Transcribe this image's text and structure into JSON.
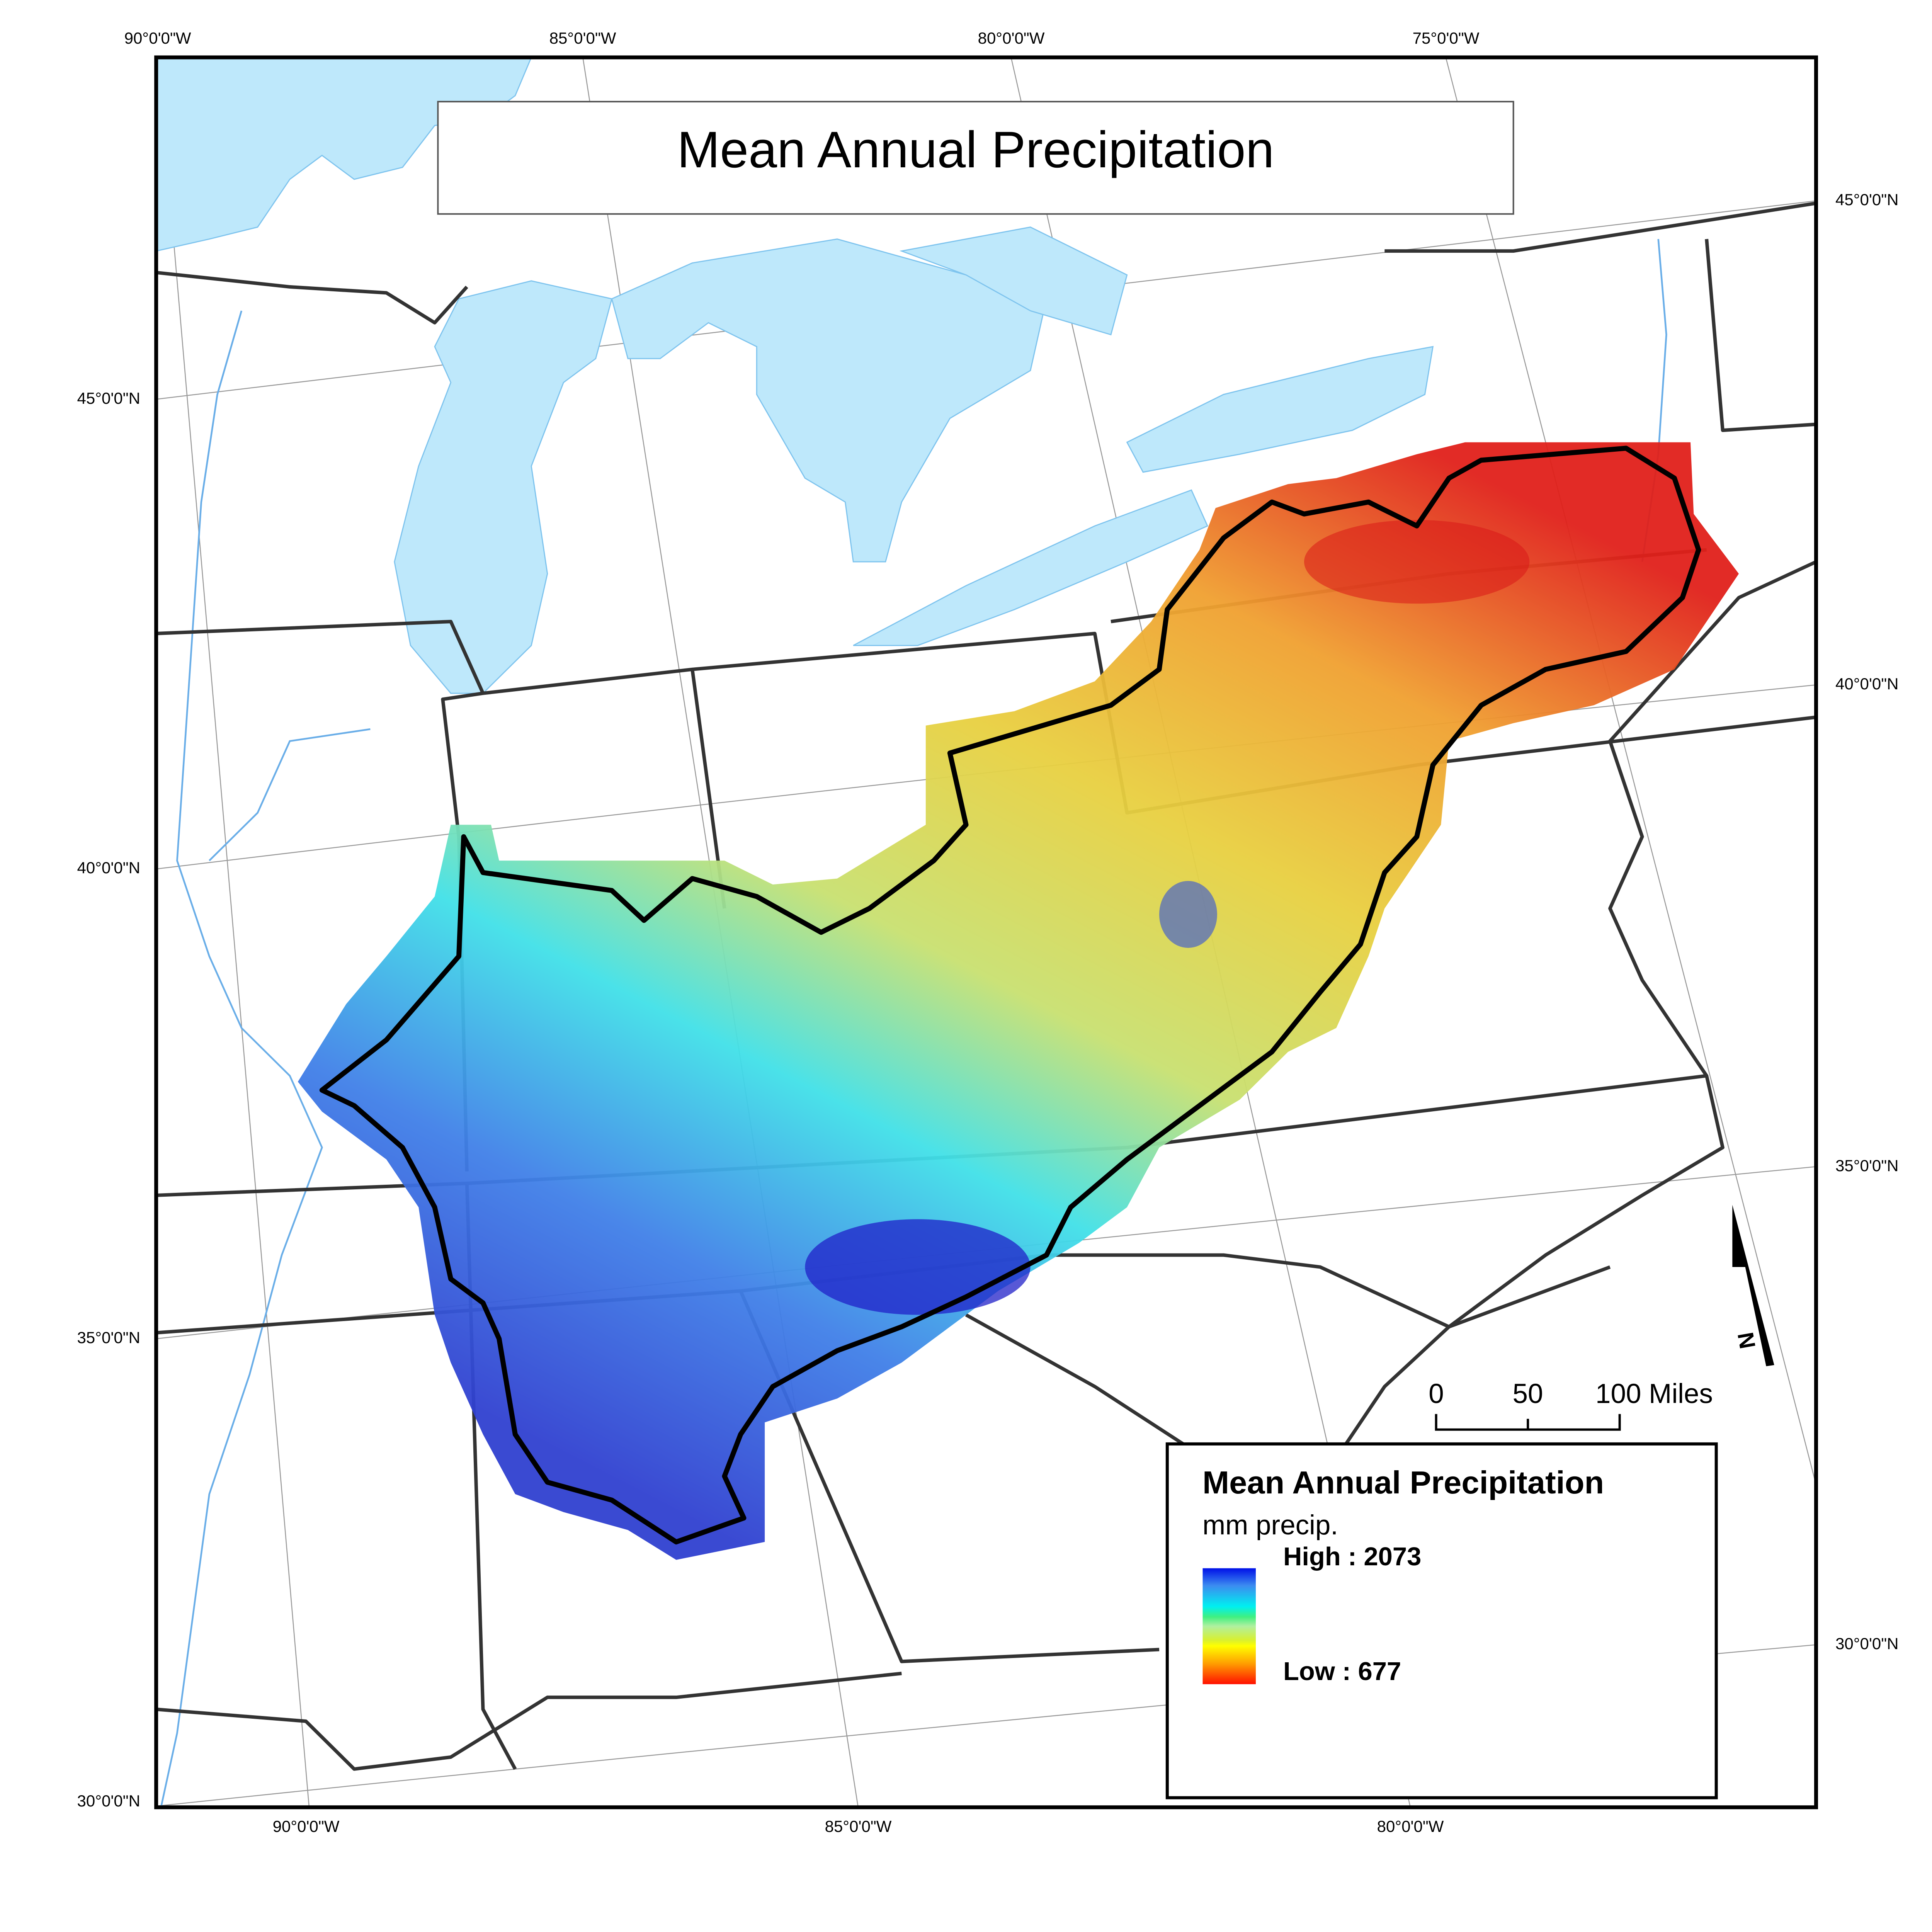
{
  "map": {
    "title": "Mean Annual Precipitation",
    "graticule": {
      "top": [
        "90°0'0\"W",
        "85°0'0\"W",
        "80°0'0\"W",
        "75°0'0\"W"
      ],
      "bottom": [
        "90°0'0\"W",
        "85°0'0\"W",
        "80°0'0\"W"
      ],
      "left": [
        "45°0'0\"N",
        "40°0'0\"N",
        "35°0'0\"N",
        "30°0'0\"N"
      ],
      "right": [
        "45°0'0\"N",
        "40°0'0\"N",
        "35°0'0\"N",
        "30°0'0\"N"
      ]
    },
    "scale_bar": {
      "labels": [
        "0",
        "50",
        "100 Miles"
      ]
    },
    "north_arrow": {
      "label": "N",
      "icon": "north-arrow-icon"
    },
    "colors": {
      "water": "#bee8fb",
      "river": "#6aaee8",
      "boundary": "#333333",
      "study_area_outline": "#000000"
    }
  },
  "legend": {
    "title": "Mean Annual Precipitation",
    "unit": "mm precip.",
    "high_label": "High : 2073",
    "low_label": "Low : 677",
    "high_value": 2073,
    "low_value": 677,
    "ramp_colors": [
      "#0010e8",
      "#3c8cf0",
      "#00f0f0",
      "#40f080",
      "#b0f0a0",
      "#d8f030",
      "#ffff00",
      "#ffa000",
      "#ff1000"
    ]
  }
}
